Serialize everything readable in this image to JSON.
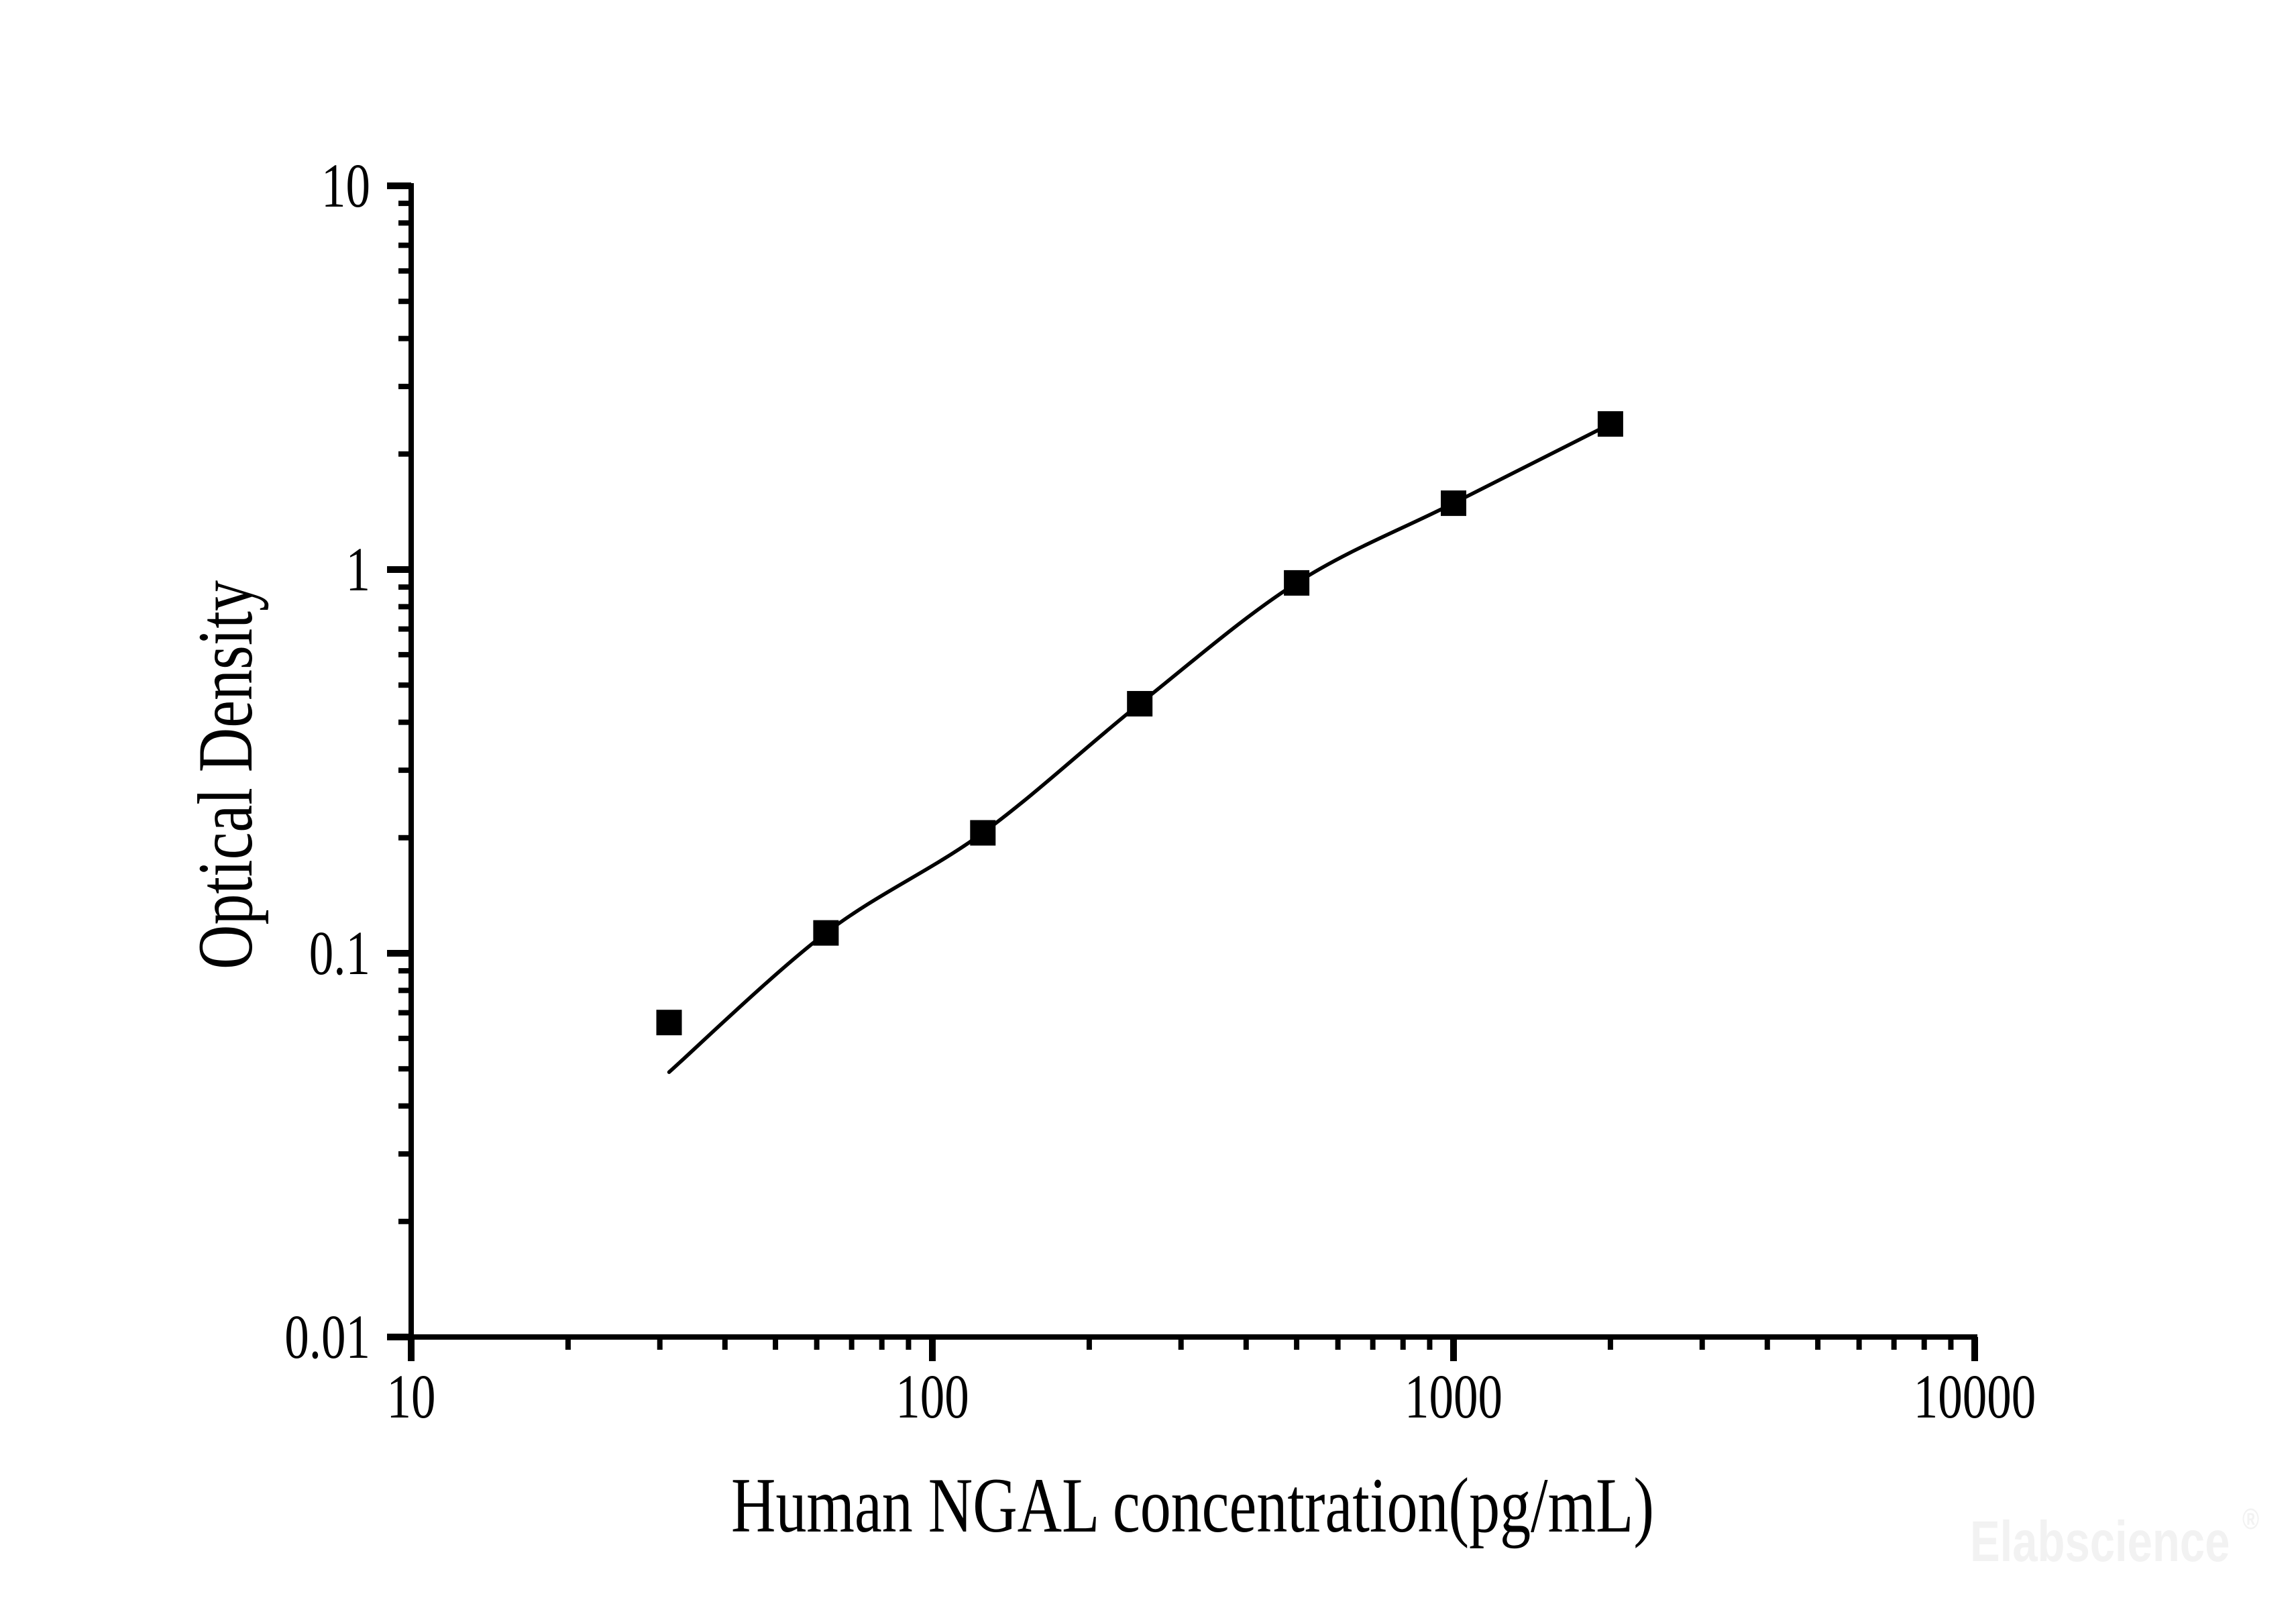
{
  "watermark": {
    "text": "Elabscience",
    "registered_mark": "®",
    "color": "#f2f2f2"
  },
  "chart_data": {
    "type": "scatter",
    "title": "",
    "xlabel": "Human NGAL concentration(pg/mL)",
    "ylabel": "Optical Density",
    "x_scale": "log",
    "y_scale": "log",
    "xlim": [
      10,
      10000
    ],
    "ylim": [
      0.01,
      10
    ],
    "grid": false,
    "legend": null,
    "x_ticks": [
      {
        "value": 10,
        "label": "10"
      },
      {
        "value": 100,
        "label": "100"
      },
      {
        "value": 1000,
        "label": "1000"
      },
      {
        "value": 10000,
        "label": "10000"
      }
    ],
    "y_ticks": [
      {
        "value": 0.01,
        "label": "0.01"
      },
      {
        "value": 0.1,
        "label": "0.1"
      },
      {
        "value": 1,
        "label": "1"
      },
      {
        "value": 10,
        "label": "10"
      }
    ],
    "series": [
      {
        "name": "standard curve points",
        "marker": "filled-square",
        "color": "#000000",
        "points": [
          {
            "x": 31.25,
            "y": 0.066
          },
          {
            "x": 62.5,
            "y": 0.113
          },
          {
            "x": 125,
            "y": 0.206
          },
          {
            "x": 250,
            "y": 0.447
          },
          {
            "x": 500,
            "y": 0.923
          },
          {
            "x": 1000,
            "y": 1.489
          },
          {
            "x": 2000,
            "y": 2.396
          }
        ]
      }
    ],
    "fit_curve": {
      "name": "fitted curve",
      "points": [
        [
          31.25,
          0.049
        ],
        [
          62.5,
          0.113
        ],
        [
          125,
          0.206
        ],
        [
          250,
          0.447
        ],
        [
          500,
          0.923
        ],
        [
          1000,
          1.489
        ],
        [
          2000,
          2.396
        ]
      ]
    }
  }
}
